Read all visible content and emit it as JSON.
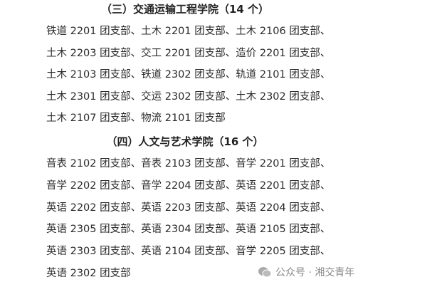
{
  "sections": [
    {
      "heading": "（三）交通运输工程学院（14 个）",
      "lines": [
        "铁道 2201 团支部、土木 2201 团支部、土木 2106 团支部、",
        "土木 2203 团支部、交工 2201 团支部、造价 2201 团支部、",
        "土木 2103 团支部、铁道 2302 团支部、轨道 2101 团支部、",
        "土木 2301 团支部、交运 2302 团支部、土木 2302 团支部、",
        "土木 2107 团支部、物流 2101 团支部"
      ]
    },
    {
      "heading": "（四）人文与艺术学院（16 个）",
      "lines": [
        "音表 2102 团支部、音表 2103 团支部、音学 2201 团支部、",
        "音学 2202 团支部、音学 2204 团支部、英语 2201 团支部、",
        "英语 2202 团支部、英语 2203 团支部、英语 2204 团支部、",
        "英语 2305 团支部、英语 2304 团支部、英语 2105 团支部、",
        "英语 2303 团支部、英语 2104 团支部、音学 2205 团支部、",
        "英语 2302 团支部"
      ]
    }
  ],
  "watermark": {
    "icon": "wechat-icon",
    "text": "公众号 · 湘交青年"
  }
}
